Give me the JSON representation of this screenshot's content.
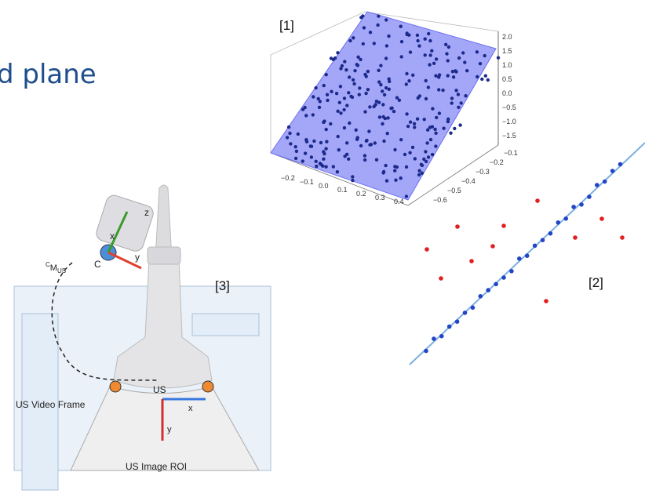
{
  "title": "d plane",
  "panels": {
    "plot3d": {
      "label": "[1]",
      "z_ticks": [
        "2.0",
        "1.5",
        "1.0",
        "0.5",
        "0.0",
        "−0.5",
        "−1.0",
        "−1.5"
      ],
      "y_ticks": [
        "−0.1",
        "−0.2",
        "−0.3",
        "−0.4",
        "−0.5",
        "−0.6"
      ],
      "x_ticks": [
        "−0.2",
        "−0.1",
        "0.0",
        "0.1",
        "0.2",
        "0.3",
        "0.4"
      ]
    },
    "linefit": {
      "label": "[2]"
    },
    "diagram": {
      "label": "[3]",
      "transform": {
        "prefix": "C",
        "main": "M",
        "sub": "US"
      },
      "sensor_frame": "C",
      "sensor_axes": [
        "x",
        "y",
        "z"
      ],
      "us_frame": "US",
      "us_axes": [
        "x",
        "y"
      ],
      "video_frame": "US Video Frame",
      "roi": "US Image ROI"
    }
  }
}
